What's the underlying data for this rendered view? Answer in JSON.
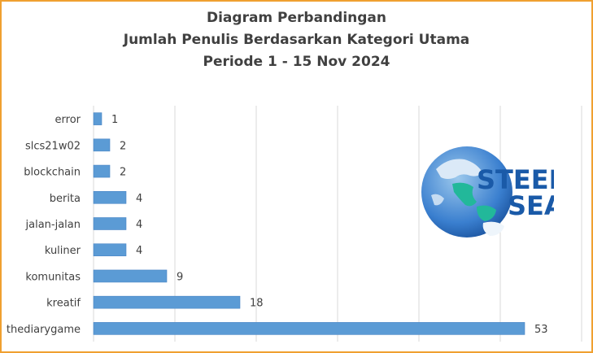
{
  "chart_data": {
    "type": "bar",
    "orientation": "horizontal",
    "title_lines": [
      "Diagram  Perbandingan",
      "Jumlah  Penulis  Berdasarkan  Kategori  Utama",
      "Periode  1 - 15 Nov  2024"
    ],
    "categories": [
      "error",
      "slcs21w02",
      "blockchain",
      "berita",
      "jalan-jalan",
      "kuliner",
      "komunitas",
      "kreatif",
      "thediarygame"
    ],
    "values": [
      1,
      2,
      2,
      4,
      4,
      4,
      9,
      18,
      53
    ],
    "value_labels": [
      "1",
      "2",
      "2",
      "4",
      "4",
      "4",
      "9",
      "18",
      "53"
    ],
    "xlim": [
      0,
      60
    ],
    "grid": true,
    "legend": "none",
    "bar_color": "#5b9bd5",
    "border_color": "#f0a030"
  },
  "logo": {
    "name": "globe-icon",
    "line1": "STEEM",
    "line2": "SEA"
  }
}
